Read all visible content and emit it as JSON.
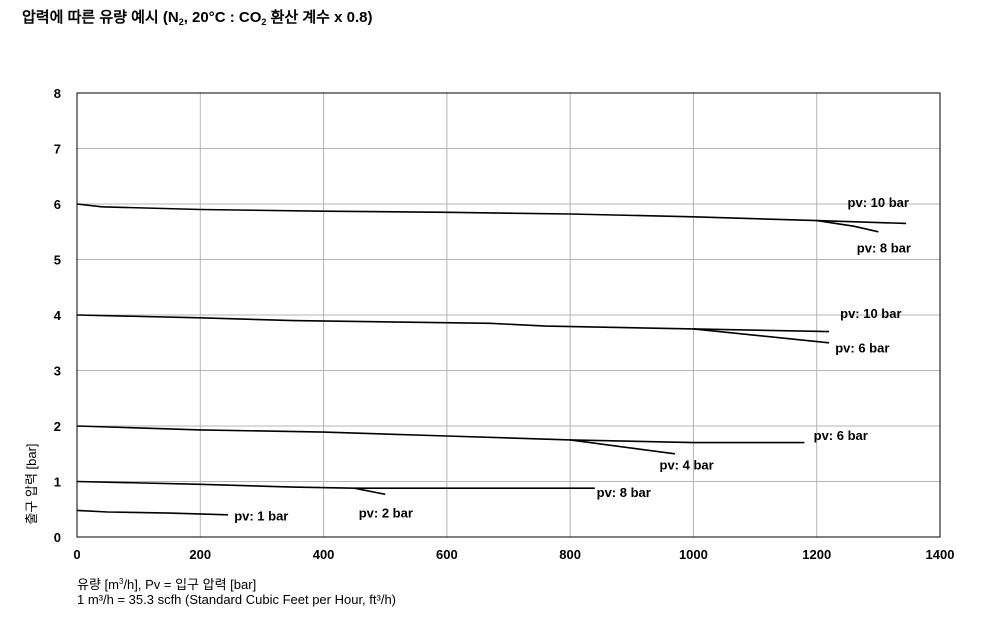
{
  "chart_data": {
    "type": "line",
    "title": {
      "prefix": "압력에 따른 유량 예시 (N",
      "sub1": "2",
      "middle": ", 20°C : CO",
      "sub2": "2",
      "suffix": " 환산 계수 x 0.8)"
    },
    "ylabel": "출구 압력 [bar]",
    "xlabel": {
      "prefix": "유량 [m",
      "sup": "3",
      "suffix": "/h], Pv = 입구 압력 [bar]"
    },
    "note": "1 m³/h = 35.3 scfh (Standard Cubic Feet per Hour, ft³/h)",
    "xlim": [
      0,
      1400
    ],
    "ylim": [
      0,
      8
    ],
    "xticks": [
      "0",
      "200",
      "400",
      "600",
      "800",
      "1000",
      "1200",
      "1400"
    ],
    "yticks": [
      "0",
      "1",
      "2",
      "3",
      "4",
      "5",
      "6",
      "7",
      "8"
    ],
    "grid": true,
    "series": [
      {
        "name": "pv: 10 bar",
        "x": [
          0,
          40,
          200,
          400,
          600,
          800,
          1000,
          1200,
          1345
        ],
        "y": [
          6.0,
          5.95,
          5.9,
          5.87,
          5.85,
          5.82,
          5.77,
          5.7,
          5.65
        ]
      },
      {
        "name": "pv: 8 bar",
        "x": [
          1200,
          1260,
          1300
        ],
        "y": [
          5.7,
          5.6,
          5.5
        ]
      },
      {
        "name": "pv: 10 bar",
        "x": [
          0,
          200,
          350,
          670,
          760,
          1000,
          1220
        ],
        "y": [
          4.0,
          3.95,
          3.9,
          3.85,
          3.8,
          3.75,
          3.7
        ]
      },
      {
        "name": "pv: 6 bar",
        "x": [
          1000,
          1220
        ],
        "y": [
          3.75,
          3.5
        ]
      },
      {
        "name": "pv: 6 bar",
        "x": [
          0,
          200,
          400,
          600,
          800,
          1000,
          1180
        ],
        "y": [
          2.0,
          1.93,
          1.89,
          1.82,
          1.75,
          1.7,
          1.7
        ]
      },
      {
        "name": "pv: 4 bar",
        "x": [
          800,
          970
        ],
        "y": [
          1.75,
          1.5
        ]
      },
      {
        "name": "pv: 8 bar",
        "x": [
          0,
          200,
          350,
          450,
          650,
          840
        ],
        "y": [
          1.0,
          0.95,
          0.9,
          0.88,
          0.88,
          0.88
        ]
      },
      {
        "name": "pv: 2 bar",
        "x": [
          450,
          500
        ],
        "y": [
          0.88,
          0.77
        ]
      },
      {
        "name": "pv: 1 bar",
        "x": [
          0,
          50,
          150,
          245
        ],
        "y": [
          0.48,
          0.45,
          0.43,
          0.4
        ]
      }
    ],
    "labels": [
      {
        "text": "pv: 10 bar",
        "x": 1250,
        "y": 5.95
      },
      {
        "text": "pv: 8 bar",
        "x": 1265,
        "y": 5.13
      },
      {
        "text": "pv: 10 bar",
        "x": 1238,
        "y": 3.95
      },
      {
        "text": "pv: 6 bar",
        "x": 1230,
        "y": 3.32
      },
      {
        "text": "pv: 6 bar",
        "x": 1195,
        "y": 1.75
      },
      {
        "text": "pv: 4 bar",
        "x": 945,
        "y": 1.22
      },
      {
        "text": "pv: 8 bar",
        "x": 843,
        "y": 0.72
      },
      {
        "text": "pv: 2 bar",
        "x": 457,
        "y": 0.35
      },
      {
        "text": "pv: 1 bar",
        "x": 255,
        "y": 0.3
      }
    ]
  }
}
